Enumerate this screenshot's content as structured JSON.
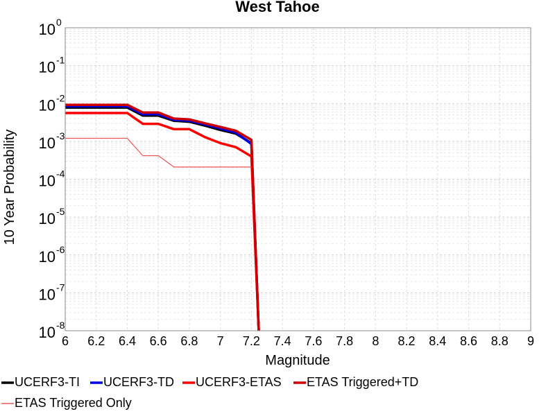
{
  "chart_data": {
    "type": "line",
    "title": "West Tahoe",
    "xlabel": "Magnitude",
    "ylabel": "10 Year Probability",
    "xlim": [
      6,
      9
    ],
    "ylim": [
      1e-08,
      1
    ],
    "yscale": "log",
    "grid": true,
    "legend_position": "bottom",
    "x_ticks": [
      "6",
      "6.2",
      "6.4",
      "6.6",
      "6.8",
      "7",
      "7.2",
      "7.4",
      "7.6",
      "7.8",
      "8",
      "8.2",
      "8.4",
      "8.6",
      "8.8",
      "9"
    ],
    "y_ticks": [
      {
        "base": "10",
        "exp": "0",
        "value": 1
      },
      {
        "base": "10",
        "exp": "-1",
        "value": 0.1
      },
      {
        "base": "10",
        "exp": "-2",
        "value": 0.01
      },
      {
        "base": "10",
        "exp": "-3",
        "value": 0.001
      },
      {
        "base": "10",
        "exp": "-4",
        "value": 0.0001
      },
      {
        "base": "10",
        "exp": "-5",
        "value": 1e-05
      },
      {
        "base": "10",
        "exp": "-6",
        "value": 1e-06
      },
      {
        "base": "10",
        "exp": "-7",
        "value": 1e-07
      },
      {
        "base": "10",
        "exp": "-8",
        "value": 1e-08
      }
    ],
    "series": [
      {
        "name": "UCERF3-TI",
        "color": "#000000",
        "width": 3.5,
        "x": [
          6.0,
          6.1,
          6.2,
          6.3,
          6.4,
          6.5,
          6.6,
          6.7,
          6.8,
          6.9,
          7.0,
          7.1,
          7.2,
          7.25
        ],
        "y": [
          0.0078,
          0.0078,
          0.0078,
          0.0078,
          0.0078,
          0.0048,
          0.0048,
          0.0035,
          0.0033,
          0.0026,
          0.002,
          0.0016,
          0.0009,
          5e-09
        ]
      },
      {
        "name": "UCERF3-TD",
        "color": "#0000dd",
        "width": 3.5,
        "x": [
          6.0,
          6.1,
          6.2,
          6.3,
          6.4,
          6.5,
          6.6,
          6.7,
          6.8,
          6.9,
          7.0,
          7.1,
          7.2,
          7.25
        ],
        "y": [
          0.0084,
          0.0084,
          0.0084,
          0.0084,
          0.0084,
          0.0052,
          0.0052,
          0.0037,
          0.0035,
          0.0028,
          0.0022,
          0.0017,
          0.00085,
          5e-09
        ]
      },
      {
        "name": "UCERF3-ETAS",
        "color": "#ff0000",
        "width": 3.5,
        "x": [
          6.0,
          6.1,
          6.2,
          6.3,
          6.4,
          6.5,
          6.6,
          6.7,
          6.8,
          6.9,
          7.0,
          7.1,
          7.2,
          7.25
        ],
        "y": [
          0.0056,
          0.0056,
          0.0056,
          0.0056,
          0.0056,
          0.0029,
          0.0029,
          0.0021,
          0.0021,
          0.0013,
          0.0009,
          0.0007,
          0.0004,
          5e-09
        ]
      },
      {
        "name": "ETAS Triggered+TD",
        "color": "#cc0000",
        "width": 3.5,
        "x": [
          6.0,
          6.1,
          6.2,
          6.3,
          6.4,
          6.5,
          6.6,
          6.7,
          6.8,
          6.9,
          7.0,
          7.1,
          7.2,
          7.25
        ],
        "y": [
          0.0092,
          0.0092,
          0.0092,
          0.0092,
          0.0092,
          0.0058,
          0.0058,
          0.004,
          0.0038,
          0.003,
          0.0024,
          0.0019,
          0.0011,
          5e-09
        ]
      },
      {
        "name": "ETAS Triggered Only",
        "color": "#ee5555",
        "width": 1.2,
        "x": [
          6.0,
          6.1,
          6.2,
          6.3,
          6.4,
          6.5,
          6.6,
          6.7,
          6.8,
          6.9,
          7.0,
          7.1,
          7.2
        ],
        "y": [
          0.0012,
          0.0012,
          0.0012,
          0.0012,
          0.0012,
          0.00042,
          0.00042,
          0.00021,
          0.00021,
          0.00021,
          0.00021,
          0.00021,
          0.00021
        ]
      }
    ]
  }
}
